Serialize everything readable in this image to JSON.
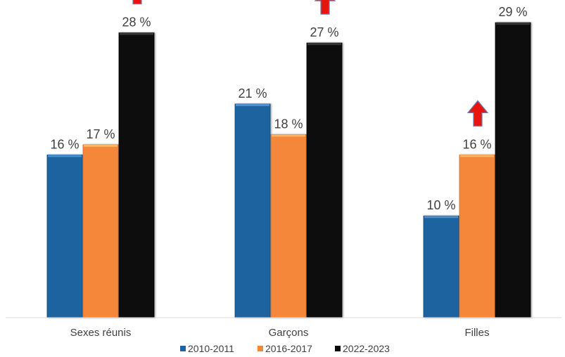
{
  "chart_data": {
    "type": "bar",
    "categories": [
      "Sexes réunis",
      "Garçons",
      "Filles"
    ],
    "series": [
      {
        "name": "2010-2011",
        "color": "#1f64a0",
        "values": [
          16,
          21,
          10
        ],
        "labels": [
          "16 %",
          "21 %",
          "10 %"
        ]
      },
      {
        "name": "2016-2017",
        "color": "#f5873a",
        "values": [
          17,
          18,
          16
        ],
        "labels": [
          "17 %",
          "18 %",
          "16 %"
        ]
      },
      {
        "name": "2022-2023",
        "color": "#0a0a0a",
        "values": [
          28,
          27,
          29
        ],
        "labels": [
          "28 %",
          "27 %",
          "29 %"
        ]
      }
    ],
    "ylim": [
      0,
      30
    ],
    "grid": false,
    "legend_position": "bottom",
    "annotations": [
      {
        "type": "up-arrow",
        "category": "Sexes réunis",
        "series": "2022-2023"
      },
      {
        "type": "up-arrow",
        "category": "Garçons",
        "series": "2022-2023"
      },
      {
        "type": "up-arrow",
        "category": "Filles",
        "series": "2022-2023"
      },
      {
        "type": "up-arrow",
        "category": "Filles",
        "series": "2016-2017"
      }
    ],
    "annotation_color": "#e8140f"
  }
}
